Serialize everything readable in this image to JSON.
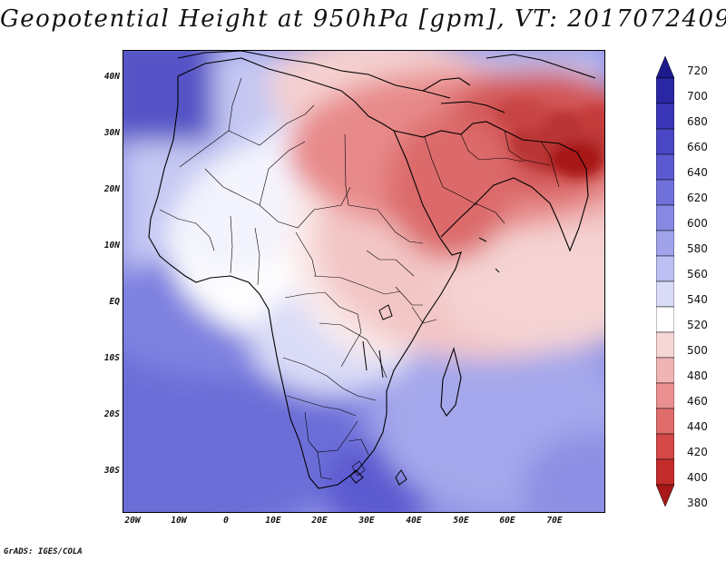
{
  "title": "Geopotential Height at 950hPa [gpm], VT: 2017072409",
  "credit": "GrADS: IGES/COLA",
  "y_axis_labels": [
    "40N",
    "30N",
    "20N",
    "10N",
    "EQ",
    "10S",
    "20S",
    "30S"
  ],
  "x_axis_labels": [
    "20W",
    "10W",
    "0",
    "10E",
    "20E",
    "30E",
    "40E",
    "50E",
    "60E",
    "70E"
  ],
  "colorbar": {
    "levels": [
      "720",
      "700",
      "680",
      "660",
      "640",
      "620",
      "600",
      "580",
      "560",
      "540",
      "520",
      "500",
      "480",
      "460",
      "440",
      "420",
      "400",
      "380"
    ],
    "colors": [
      "#1c1a8c",
      "#2a27a4",
      "#3a36b8",
      "#4a47c4",
      "#5b5ad0",
      "#6f70da",
      "#8688e2",
      "#a0a3ea",
      "#bcc0f2",
      "#dadcf7",
      "#ffffff",
      "#f7d6d6",
      "#f1b4b4",
      "#ea9090",
      "#e06c6c",
      "#d44848",
      "#c42c2c",
      "#a81818"
    ]
  },
  "map_data": {
    "lon_range": [
      -22,
      80
    ],
    "lat_range": [
      -37,
      45
    ],
    "field": "Geopotential Height",
    "level": "950hPa",
    "units": "gpm",
    "valid_time": "2017072409"
  }
}
